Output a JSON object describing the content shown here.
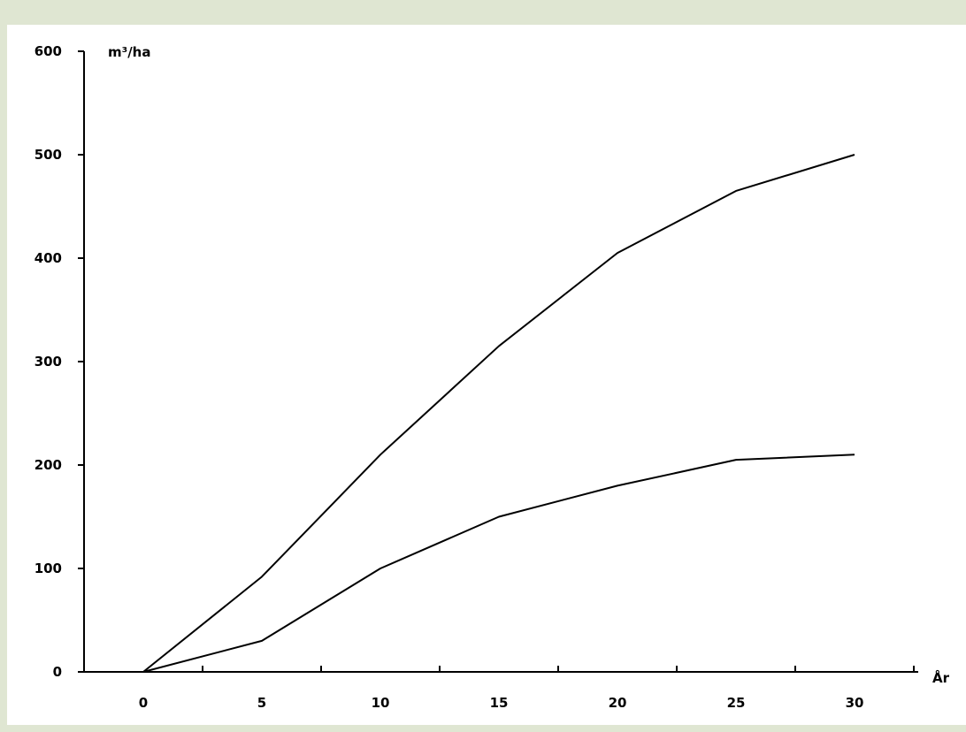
{
  "chart_data": {
    "type": "line",
    "title": "",
    "ylabel": "m³/ha",
    "xlabel": "År",
    "xlim": [
      0,
      30
    ],
    "ylim": [
      0,
      600
    ],
    "xticks": [
      0,
      5,
      10,
      15,
      20,
      25,
      30
    ],
    "yticks": [
      0,
      100,
      200,
      300,
      400,
      500,
      600
    ],
    "grid": false,
    "legend": "none",
    "series": [
      {
        "x": [
          0,
          5,
          10,
          15,
          20,
          25,
          30
        ],
        "values": [
          0,
          92,
          210,
          315,
          405,
          465,
          500
        ],
        "color": "#000000"
      },
      {
        "x": [
          0,
          5,
          10,
          15,
          20,
          25,
          30
        ],
        "values": [
          0,
          30,
          100,
          150,
          180,
          205,
          210
        ],
        "color": "#000000"
      }
    ]
  }
}
